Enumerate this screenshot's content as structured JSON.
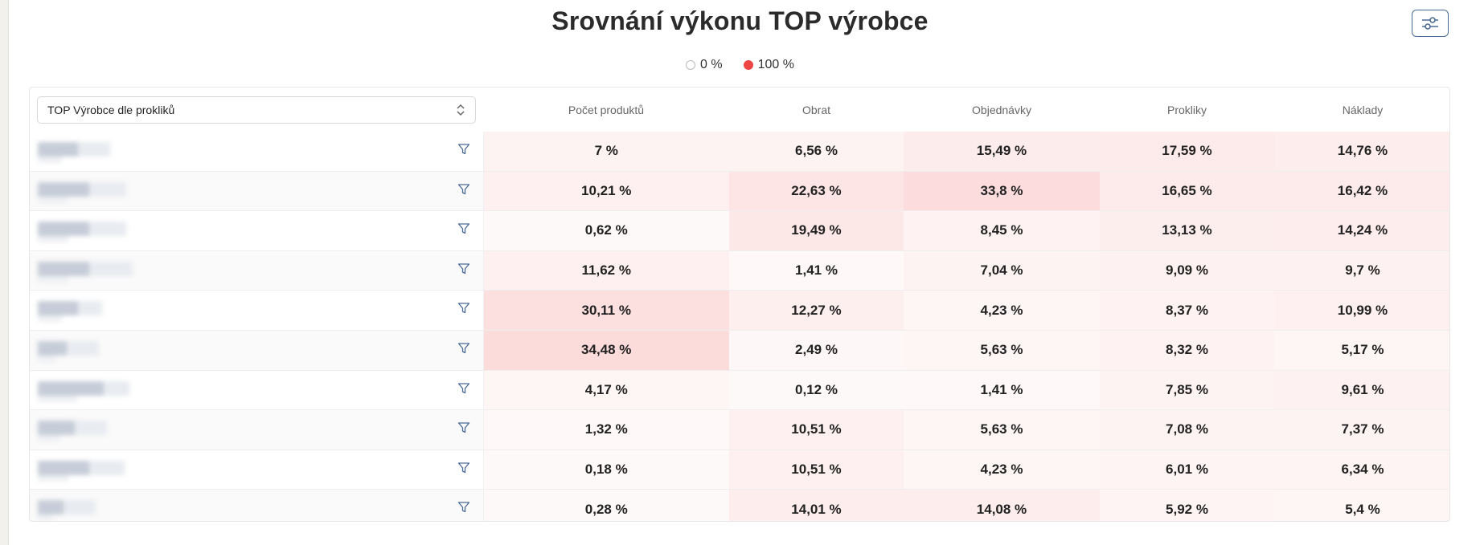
{
  "title": "Srovnání výkonu TOP výrobce",
  "legend": {
    "low_label": "0 %",
    "high_label": "100 %",
    "low_color": "#ffffff",
    "high_color": "#ee4444"
  },
  "selector": {
    "value": "TOP Výrobce dle prokliků"
  },
  "columns": [
    "Počet produktů",
    "Obrat",
    "Objednávky",
    "Prokliky",
    "Náklady"
  ],
  "rows": [
    {
      "values": [
        "7 %",
        "6,56 %",
        "15,49 %",
        "17,59 %",
        "14,76 %"
      ],
      "num": [
        7,
        6.56,
        15.49,
        17.59,
        14.76
      ]
    },
    {
      "values": [
        "10,21 %",
        "22,63 %",
        "33,8 %",
        "16,65 %",
        "16,42 %"
      ],
      "num": [
        10.21,
        22.63,
        33.8,
        16.65,
        16.42
      ]
    },
    {
      "values": [
        "0,62 %",
        "19,49 %",
        "8,45 %",
        "13,13 %",
        "14,24 %"
      ],
      "num": [
        0.62,
        19.49,
        8.45,
        13.13,
        14.24
      ]
    },
    {
      "values": [
        "11,62 %",
        "1,41 %",
        "7,04 %",
        "9,09 %",
        "9,7 %"
      ],
      "num": [
        11.62,
        1.41,
        7.04,
        9.09,
        9.7
      ]
    },
    {
      "values": [
        "30,11 %",
        "12,27 %",
        "4,23 %",
        "8,37 %",
        "10,99 %"
      ],
      "num": [
        30.11,
        12.27,
        4.23,
        8.37,
        10.99
      ]
    },
    {
      "values": [
        "34,48 %",
        "2,49 %",
        "5,63 %",
        "8,32 %",
        "5,17 %"
      ],
      "num": [
        34.48,
        2.49,
        5.63,
        8.32,
        5.17
      ]
    },
    {
      "values": [
        "4,17 %",
        "0,12 %",
        "1,41 %",
        "7,85 %",
        "9,61 %"
      ],
      "num": [
        4.17,
        0.12,
        1.41,
        7.85,
        9.61
      ]
    },
    {
      "values": [
        "1,32 %",
        "10,51 %",
        "5,63 %",
        "7,08 %",
        "7,37 %"
      ],
      "num": [
        1.32,
        10.51,
        5.63,
        7.08,
        7.37
      ]
    },
    {
      "values": [
        "0,18 %",
        "10,51 %",
        "4,23 %",
        "6,01 %",
        "6,34 %"
      ],
      "num": [
        0.18,
        10.51,
        4.23,
        6.01,
        6.34
      ]
    },
    {
      "values": [
        "0,28 %",
        "14,01 %",
        "14,08 %",
        "5,92 %",
        "5,4 %"
      ],
      "num": [
        0.28,
        14.01,
        14.08,
        5.92,
        5.4
      ]
    }
  ],
  "icons": {
    "settings": "sliders-icon",
    "sort": "chevron-up-down-icon",
    "filter": "funnel-icon"
  }
}
